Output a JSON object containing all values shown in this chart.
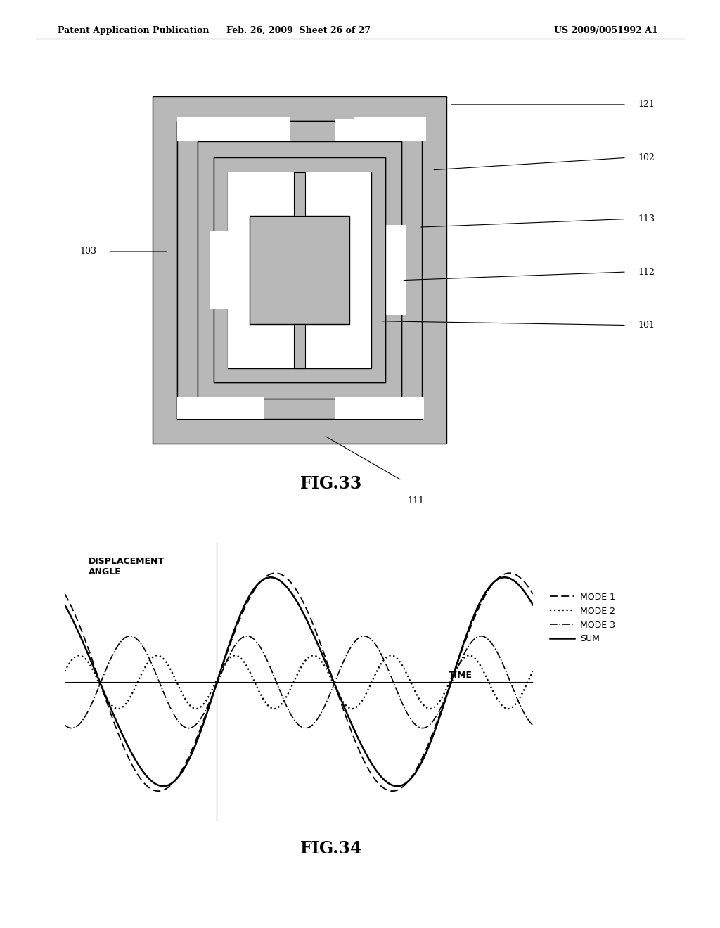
{
  "header_left": "Patent Application Publication",
  "header_mid": "Feb. 26, 2009  Sheet 26 of 27",
  "header_right": "US 2009/0051992 A1",
  "fig33_title": "FIG.33",
  "fig34_title": "FIG.34",
  "disp_angle_label": "DISPLACEMENT\nANGLE",
  "time_label": "TIME",
  "legend_entries": [
    "MODE 1",
    "MODE 2",
    "MODE 3",
    "SUM"
  ],
  "bg_color": "#ffffff",
  "gray": "#b8b8b8",
  "white": "#ffffff",
  "black": "#000000"
}
